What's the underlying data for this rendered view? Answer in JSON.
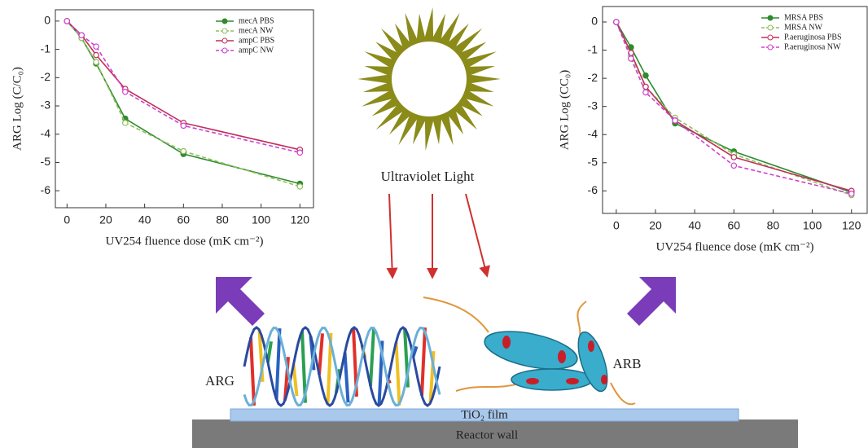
{
  "chart_data": [
    {
      "type": "line",
      "xlabel": "UV254 fluence dose (mK cm⁻²)",
      "ylabel": "ARG Log (C/C₀)",
      "x": [
        0,
        7.5,
        15,
        30,
        60,
        120
      ],
      "xlim": [
        -6,
        127
      ],
      "ylim": [
        -6.6,
        0.4
      ],
      "xticks": [
        0,
        20,
        40,
        60,
        80,
        100,
        120
      ],
      "yticks": [
        0,
        -1,
        -2,
        -3,
        -4,
        -5,
        -6
      ],
      "legend": "upper right",
      "series": [
        {
          "name": "mecA PBS",
          "color": "#2e8b2e",
          "dash": false,
          "marker": "filled",
          "values": [
            0,
            -0.6,
            -1.5,
            -3.45,
            -4.7,
            -5.75
          ]
        },
        {
          "name": "mecA NW",
          "color": "#8fbf5a",
          "dash": true,
          "marker": "open",
          "values": [
            0,
            -0.6,
            -1.45,
            -3.6,
            -4.6,
            -5.85
          ]
        },
        {
          "name": "ampC PBS",
          "color": "#c0305a",
          "dash": false,
          "marker": "open",
          "values": [
            0,
            -0.5,
            -1.2,
            -2.4,
            -3.6,
            -4.55
          ]
        },
        {
          "name": "ampC NW",
          "color": "#d040d0",
          "dash": true,
          "marker": "open",
          "values": [
            0,
            -0.5,
            -0.9,
            -2.5,
            -3.7,
            -4.65
          ]
        }
      ]
    },
    {
      "type": "line",
      "xlabel": "UV254 fluence dose (mK cm⁻²)",
      "ylabel": "ARG Log (CC₀)",
      "x": [
        0,
        7.5,
        15,
        30,
        60,
        120
      ],
      "xlim": [
        -7,
        128
      ],
      "ylim": [
        -6.8,
        0.55
      ],
      "xticks": [
        0,
        20,
        40,
        60,
        80,
        100,
        120
      ],
      "yticks": [
        0,
        -1,
        -2,
        -3,
        -4,
        -5,
        -6
      ],
      "legend": "upper right",
      "series": [
        {
          "name": "MRSA PBS",
          "color": "#2e8b2e",
          "dash": false,
          "marker": "filled",
          "values": [
            0,
            -0.9,
            -1.9,
            -3.6,
            -4.6,
            -6.05
          ]
        },
        {
          "name": "MRSA NW",
          "color": "#8fbf5a",
          "dash": true,
          "marker": "open",
          "values": [
            0,
            -1.2,
            -2.3,
            -3.4,
            -4.7,
            -6.15
          ]
        },
        {
          "name": "P.aeruginosa  PBS",
          "color": "#c0305a",
          "dash": false,
          "marker": "open",
          "values": [
            0,
            -1.1,
            -2.3,
            -3.5,
            -4.8,
            -6.0
          ]
        },
        {
          "name": "P.aeruginosa  NW",
          "color": "#d040d0",
          "dash": true,
          "marker": "open",
          "values": [
            0,
            -1.3,
            -2.5,
            -3.5,
            -5.1,
            -6.1
          ]
        }
      ]
    }
  ],
  "diagram": {
    "light": "Ultraviolet  Light",
    "arg": "ARG",
    "arb": "ARB",
    "film": "TiO₂ film",
    "wall": "Reactor wall"
  }
}
